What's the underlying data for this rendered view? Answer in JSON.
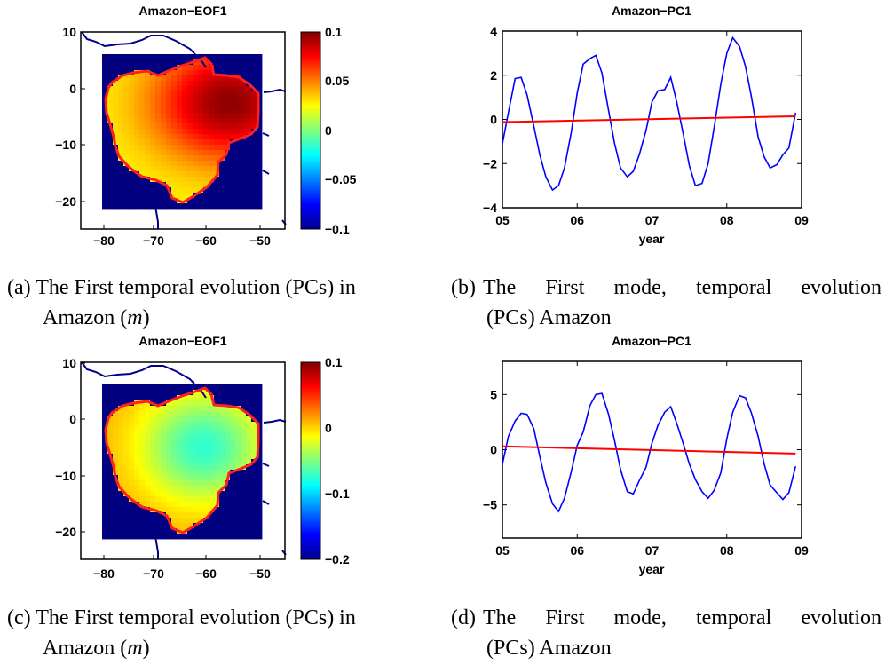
{
  "chart_data": [
    {
      "id": "a",
      "type": "heatmap",
      "title": "Amazon−EOF1",
      "x_ticks": [
        "−80",
        "−70",
        "−60",
        "−50"
      ],
      "y_ticks": [
        "10",
        "0",
        "−10",
        "−20"
      ],
      "colorbar": {
        "ticks": [
          "0.1",
          "0.05",
          "0",
          "−0.05",
          "−0.1"
        ],
        "range": [
          -0.1,
          0.1
        ]
      },
      "pattern": "positive maximum (about 0.1) in the eastern Amazon near 57W 2S, decreasing to about 0.03 in the west and south; ocean/outside basin masked at -0.1",
      "caption": {
        "label": "(a)",
        "line1": "The First temporal evolution (PCs) in",
        "line2_text": "Amazon (",
        "line2_italic": "m",
        "line2_end": ")"
      }
    },
    {
      "id": "b",
      "type": "line",
      "title": "Amazon−PC1",
      "xlabel": "year",
      "x_ticks": [
        "05",
        "06",
        "07",
        "08",
        "09"
      ],
      "y_ticks": [
        "4",
        "2",
        "0",
        "−2",
        "−4"
      ],
      "ylim": [
        -4,
        4
      ],
      "xlim": [
        2005,
        2009
      ],
      "series": [
        {
          "name": "PC1",
          "color": "#0000ff",
          "x": [
            2005.0,
            2005.08,
            2005.17,
            2005.25,
            2005.33,
            2005.42,
            2005.5,
            2005.58,
            2005.67,
            2005.75,
            2005.83,
            2005.92,
            2006.0,
            2006.08,
            2006.17,
            2006.25,
            2006.33,
            2006.42,
            2006.5,
            2006.58,
            2006.67,
            2006.75,
            2006.83,
            2006.92,
            2007.0,
            2007.08,
            2007.17,
            2007.25,
            2007.33,
            2007.42,
            2007.5,
            2007.58,
            2007.67,
            2007.75,
            2007.83,
            2007.92,
            2008.0,
            2008.08,
            2008.17,
            2008.25,
            2008.33,
            2008.42,
            2008.5,
            2008.58,
            2008.67,
            2008.75,
            2008.83,
            2008.92
          ],
          "values": [
            -1.1,
            0.3,
            1.85,
            1.9,
            1.1,
            -0.3,
            -1.6,
            -2.6,
            -3.2,
            -3.0,
            -2.2,
            -0.6,
            1.2,
            2.5,
            2.75,
            2.9,
            2.1,
            0.4,
            -1.1,
            -2.2,
            -2.6,
            -2.35,
            -1.6,
            -0.5,
            0.8,
            1.3,
            1.35,
            1.9,
            0.8,
            -0.7,
            -2.1,
            -3.0,
            -2.9,
            -2.0,
            -0.4,
            1.6,
            3.0,
            3.7,
            3.3,
            2.4,
            1.0,
            -0.8,
            -1.7,
            -2.2,
            -2.05,
            -1.6,
            -1.3,
            0.3
          ]
        },
        {
          "name": "trend",
          "color": "#ff0000",
          "x": [
            2005.0,
            2008.92
          ],
          "values": [
            -0.12,
            0.14
          ]
        }
      ],
      "caption": {
        "label": "(b)",
        "line1": "The First mode, temporal evolution",
        "line2_text": "(PCs) Amazon"
      }
    },
    {
      "id": "c",
      "type": "heatmap",
      "title": "Amazon−EOF1",
      "x_ticks": [
        "−80",
        "−70",
        "−60",
        "−50"
      ],
      "y_ticks": [
        "10",
        "0",
        "−10",
        "−20"
      ],
      "colorbar": {
        "ticks": [
          "0.1",
          "0",
          "−0.1",
          "−0.2"
        ],
        "range": [
          -0.2,
          0.1
        ]
      },
      "pattern": "values around 0.01 near the basin edges, decreasing to about -0.07 (cyan) in the central-eastern basin near 61W 5S; outside basin masked at -0.2",
      "caption": {
        "label": "(c)",
        "line1": "The First temporal evolution (PCs) in",
        "line2_text": "Amazon (",
        "line2_italic": "m",
        "line2_end": ")"
      }
    },
    {
      "id": "d",
      "type": "line",
      "title": "Amazon−PC1",
      "xlabel": "year",
      "x_ticks": [
        "05",
        "06",
        "07",
        "08",
        "09"
      ],
      "y_ticks": [
        "5",
        "0",
        "−5"
      ],
      "ylim": [
        -8,
        8
      ],
      "xlim": [
        2005,
        2009
      ],
      "series": [
        {
          "name": "PC1",
          "color": "#0000ff",
          "x": [
            2005.0,
            2005.08,
            2005.17,
            2005.25,
            2005.33,
            2005.42,
            2005.5,
            2005.58,
            2005.67,
            2005.75,
            2005.83,
            2005.92,
            2006.0,
            2006.08,
            2006.17,
            2006.25,
            2006.33,
            2006.42,
            2006.5,
            2006.58,
            2006.67,
            2006.75,
            2006.83,
            2006.92,
            2007.0,
            2007.08,
            2007.17,
            2007.25,
            2007.33,
            2007.42,
            2007.5,
            2007.58,
            2007.67,
            2007.75,
            2007.83,
            2007.92,
            2008.0,
            2008.08,
            2008.17,
            2008.25,
            2008.33,
            2008.42,
            2008.5,
            2008.58,
            2008.67,
            2008.75,
            2008.83,
            2008.92
          ],
          "values": [
            -1.3,
            1.2,
            2.6,
            3.3,
            3.2,
            1.9,
            -0.6,
            -3.0,
            -4.9,
            -5.6,
            -4.4,
            -2.0,
            0.4,
            1.6,
            4.0,
            5.0,
            5.1,
            3.2,
            0.8,
            -1.8,
            -3.8,
            -4.0,
            -2.8,
            -1.6,
            0.6,
            2.2,
            3.4,
            3.9,
            2.4,
            0.5,
            -1.3,
            -2.7,
            -3.8,
            -4.4,
            -3.7,
            -2.1,
            1.0,
            3.4,
            4.9,
            4.7,
            3.3,
            1.2,
            -1.3,
            -3.2,
            -3.9,
            -4.5,
            -3.9,
            -1.5
          ]
        },
        {
          "name": "trend",
          "color": "#ff0000",
          "x": [
            2005.0,
            2008.92
          ],
          "values": [
            0.3,
            -0.35
          ]
        }
      ],
      "caption": {
        "label": "(d)",
        "line1": "The First mode, temporal evolution",
        "line2_text": "(PCs) Amazon"
      }
    }
  ]
}
